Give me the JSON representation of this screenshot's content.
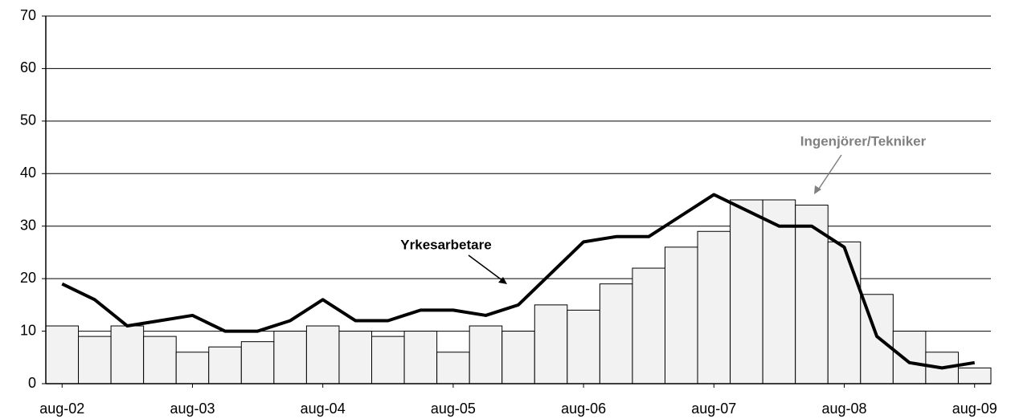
{
  "chart_data": {
    "type": "bar+line",
    "categories": [
      "aug-02",
      null,
      null,
      null,
      "aug-03",
      null,
      null,
      null,
      "aug-04",
      null,
      null,
      null,
      "aug-05",
      null,
      null,
      null,
      "aug-06",
      null,
      null,
      null,
      "aug-07",
      null,
      null,
      null,
      "aug-08",
      null,
      null,
      null,
      "aug-09"
    ],
    "series": [
      {
        "name": "Ingenjörer/Tekniker",
        "type": "bar",
        "color": "#f2f2f2",
        "label_color": "#808080",
        "values": [
          11,
          9,
          11,
          9,
          6,
          7,
          8,
          10,
          11,
          10,
          9,
          10,
          6,
          11,
          10,
          15,
          14,
          19,
          22,
          26,
          29,
          35,
          35,
          34,
          27,
          17,
          10,
          6,
          3
        ]
      },
      {
        "name": "Yrkesarbetare",
        "type": "line",
        "color": "#000000",
        "label_color": "#000000",
        "values": [
          19,
          16,
          11,
          12,
          13,
          10,
          10,
          12,
          16,
          12,
          12,
          14,
          14,
          13,
          15,
          21,
          27,
          28,
          28,
          32,
          36,
          33,
          30,
          30,
          26,
          9,
          4,
          3,
          4
        ]
      }
    ],
    "ylim": [
      0,
      70
    ],
    "yticks": [
      0,
      10,
      20,
      30,
      40,
      50,
      60,
      70
    ],
    "grid": true
  }
}
